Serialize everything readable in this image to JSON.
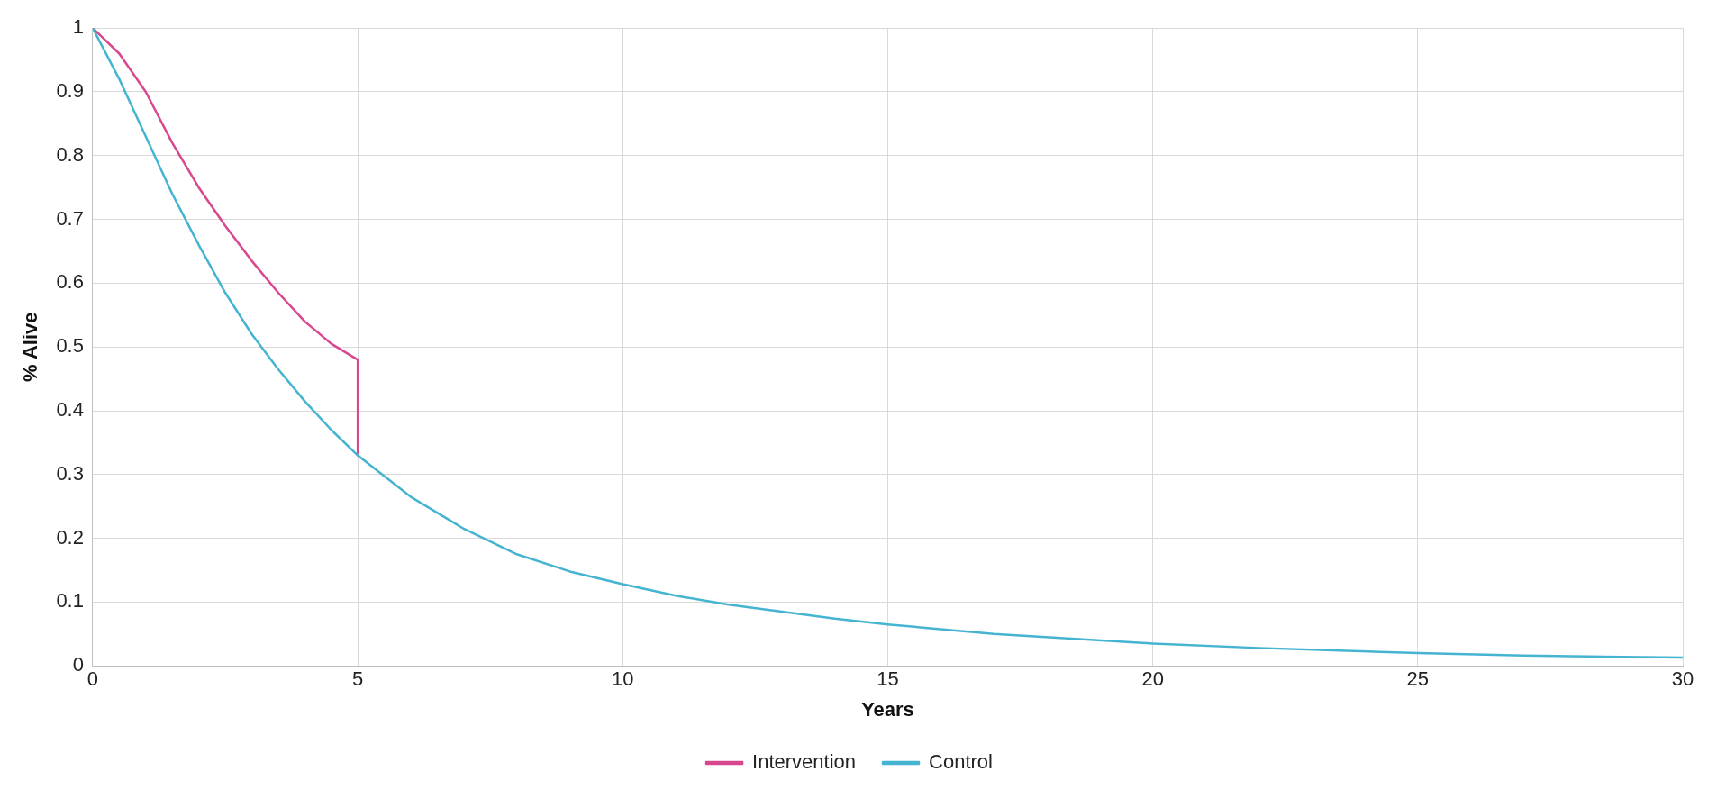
{
  "chart_data": {
    "type": "line",
    "xlabel": "Years",
    "ylabel": "% Alive",
    "xlim": [
      0,
      30
    ],
    "xticks": [
      0,
      5,
      10,
      15,
      20,
      25,
      30
    ],
    "ylim": [
      0,
      1
    ],
    "yticks": [
      0,
      0.1,
      0.2,
      0.3,
      0.4,
      0.5,
      0.6,
      0.7,
      0.8,
      0.9,
      1
    ],
    "grid": true,
    "legend": "bottom",
    "marker": "none",
    "line_style": "solid",
    "series": [
      {
        "name": "Intervention",
        "color": "#d9488f",
        "x": [
          0,
          0.5,
          1,
          1.5,
          2,
          2.5,
          3,
          3.5,
          4,
          4.5,
          5,
          5
        ],
        "values": [
          1,
          0.96,
          0.9,
          0.82,
          0.75,
          0.69,
          0.635,
          0.585,
          0.54,
          0.505,
          0.48,
          0.33
        ]
      },
      {
        "name": "Control",
        "color": "#45b4d1",
        "x": [
          0,
          0.5,
          1,
          1.5,
          2,
          2.5,
          3,
          3.5,
          4,
          4.5,
          5,
          6,
          7,
          8,
          9,
          10,
          11,
          12,
          13,
          14,
          15,
          17,
          20,
          22,
          25,
          27,
          30
        ],
        "values": [
          1,
          0.92,
          0.83,
          0.74,
          0.66,
          0.585,
          0.52,
          0.465,
          0.415,
          0.37,
          0.33,
          0.265,
          0.215,
          0.175,
          0.148,
          0.128,
          0.11,
          0.096,
          0.085,
          0.074,
          0.065,
          0.05,
          0.035,
          0.028,
          0.02,
          0.016,
          0.013
        ]
      }
    ]
  }
}
